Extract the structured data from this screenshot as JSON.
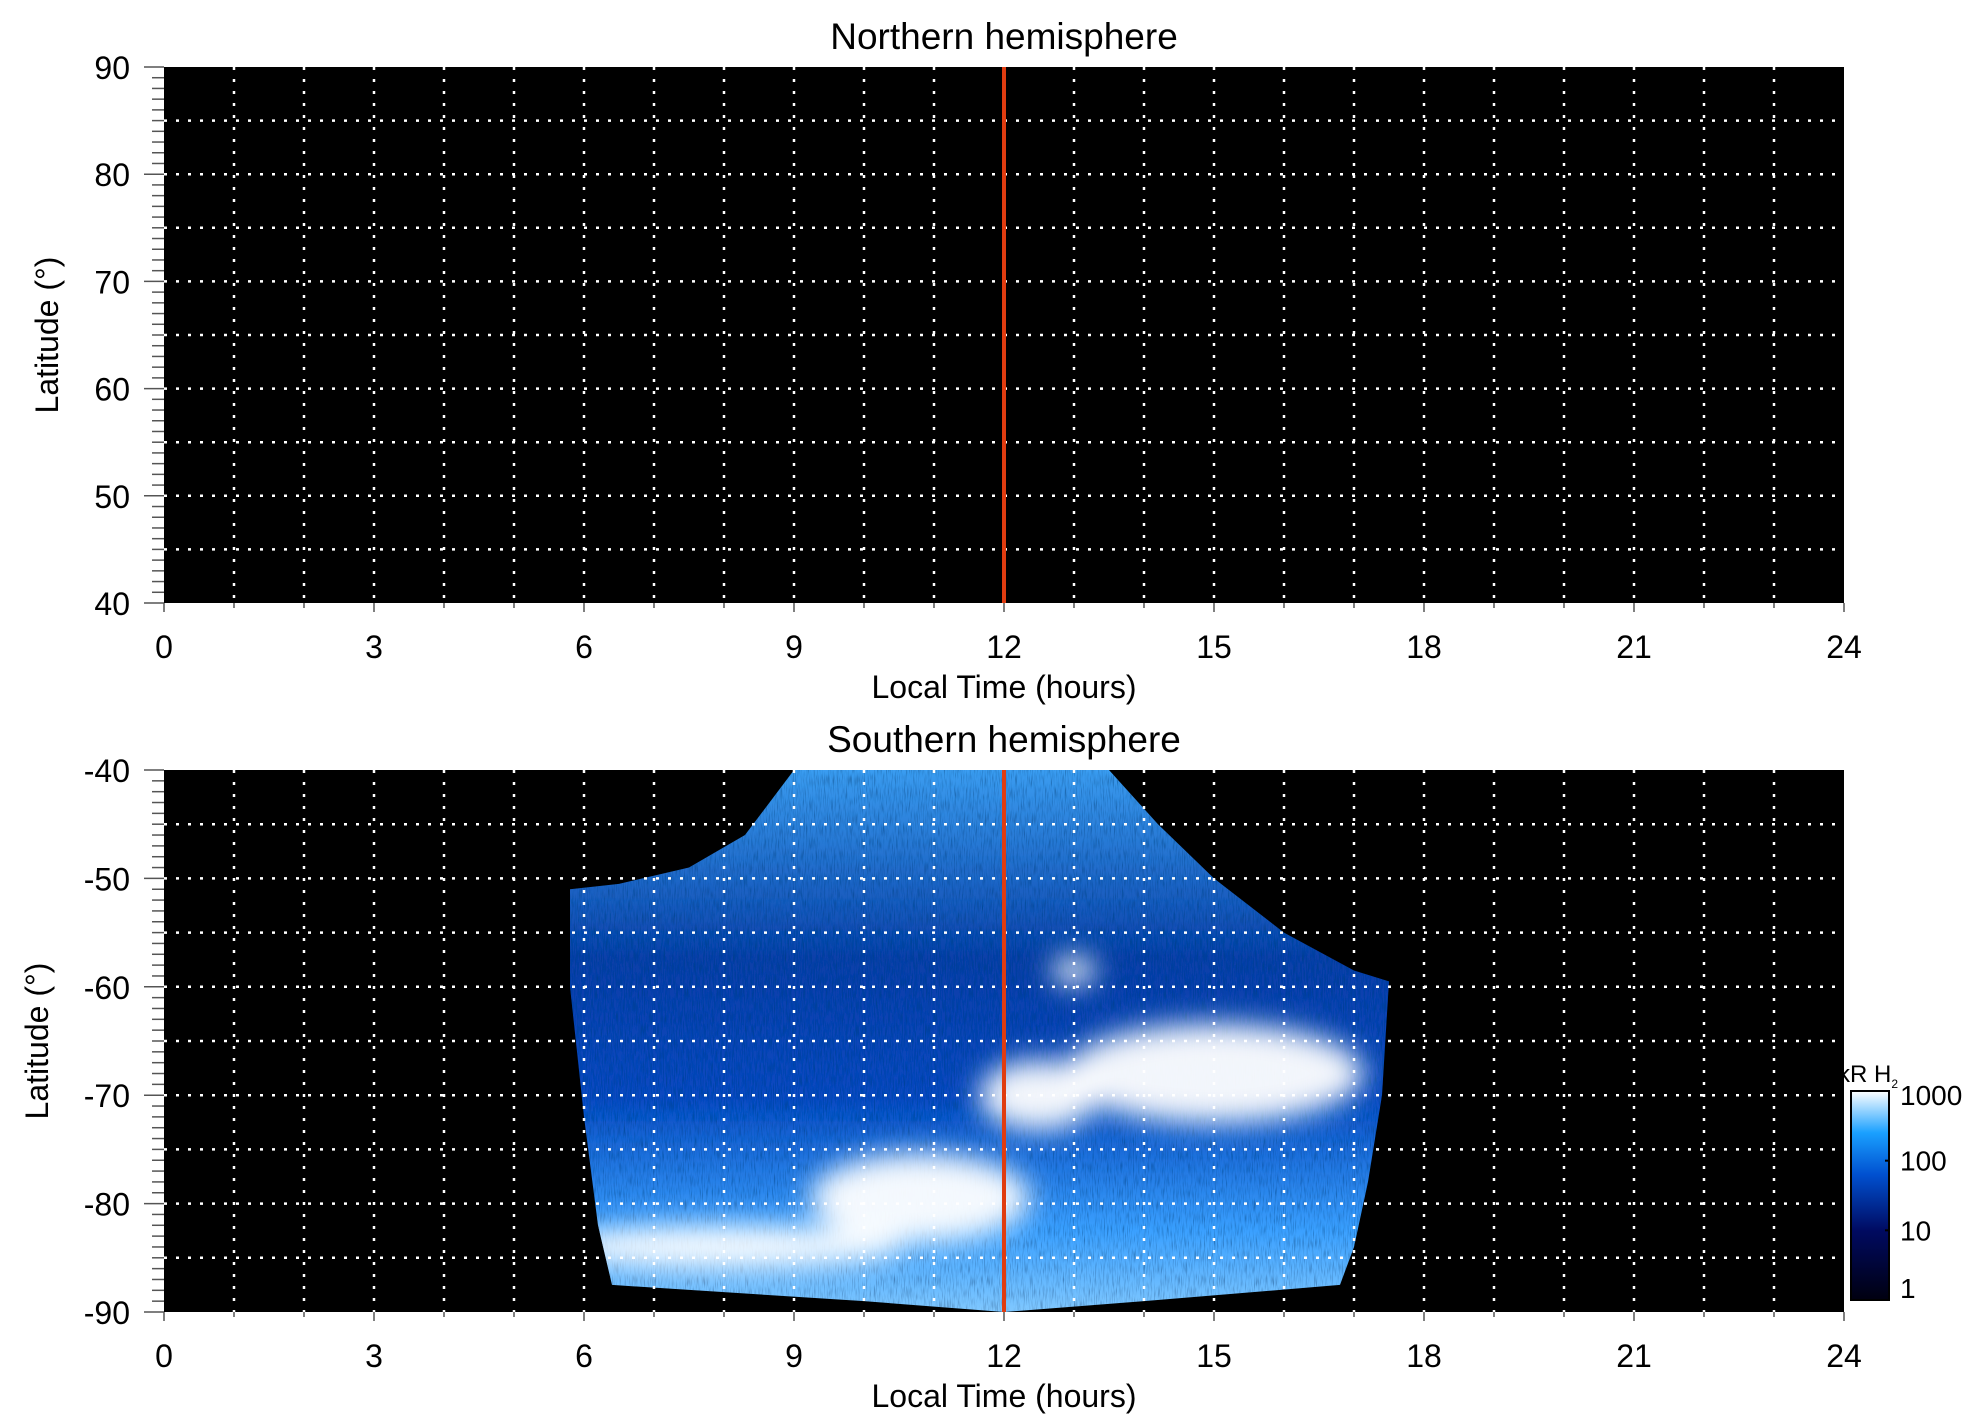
{
  "chart_data": [
    {
      "type": "heatmap",
      "title": "Northern hemisphere",
      "xlabel": "Local Time (hours)",
      "ylabel": "Latitude (°)",
      "xlim": [
        0,
        24
      ],
      "ylim": [
        40,
        90
      ],
      "xticks": [
        "0",
        "3",
        "6",
        "9",
        "12",
        "15",
        "18",
        "21",
        "24"
      ],
      "yticks": [
        "40",
        "50",
        "60",
        "70",
        "80",
        "90"
      ],
      "grid": true,
      "marker_line": {
        "x": 12,
        "color": "#e03c10"
      },
      "emission": "none"
    },
    {
      "type": "heatmap",
      "title": "Southern hemisphere",
      "xlabel": "Local Time (hours)",
      "ylabel": "Latitude (°)",
      "xlim": [
        0,
        24
      ],
      "ylim": [
        -90,
        -40
      ],
      "xticks": [
        "0",
        "3",
        "6",
        "9",
        "12",
        "15",
        "18",
        "21",
        "24"
      ],
      "yticks": [
        "-90",
        "-80",
        "-70",
        "-60",
        "-50",
        "-40"
      ],
      "grid": true,
      "marker_line": {
        "x": 12,
        "color": "#e03c10"
      },
      "emission_region_outline": [
        [
          5.8,
          -51
        ],
        [
          6.5,
          -50.5
        ],
        [
          7.5,
          -49
        ],
        [
          8.3,
          -46
        ],
        [
          9.0,
          -40
        ],
        [
          13.5,
          -40
        ],
        [
          14.2,
          -45
        ],
        [
          15,
          -50
        ],
        [
          16,
          -55
        ],
        [
          17.0,
          -58.5
        ],
        [
          17.5,
          -59.5
        ],
        [
          17.4,
          -70
        ],
        [
          17.2,
          -78
        ],
        [
          17.0,
          -84
        ],
        [
          16.8,
          -87.5
        ],
        [
          14,
          -89
        ],
        [
          12,
          -90
        ],
        [
          10,
          -89
        ],
        [
          6.4,
          -87.5
        ],
        [
          6.2,
          -82
        ],
        [
          6.0,
          -72
        ],
        [
          5.8,
          -60
        ]
      ],
      "bright_regions": [
        [
          10.8,
          -79.5
        ],
        [
          13.0,
          -58.5
        ],
        [
          15.0,
          -68
        ],
        [
          12.5,
          -70
        ],
        [
          8.0,
          -84
        ]
      ]
    }
  ],
  "colorbar": {
    "title": "kR H",
    "title_subscript": "2",
    "scale": "log",
    "range": [
      1,
      1000
    ],
    "tick_labels": [
      "1",
      "10",
      "100",
      "1000"
    ],
    "colors": [
      "#000010",
      "#000a60",
      "#0050d0",
      "#1aa0ff",
      "#ffffff"
    ]
  }
}
